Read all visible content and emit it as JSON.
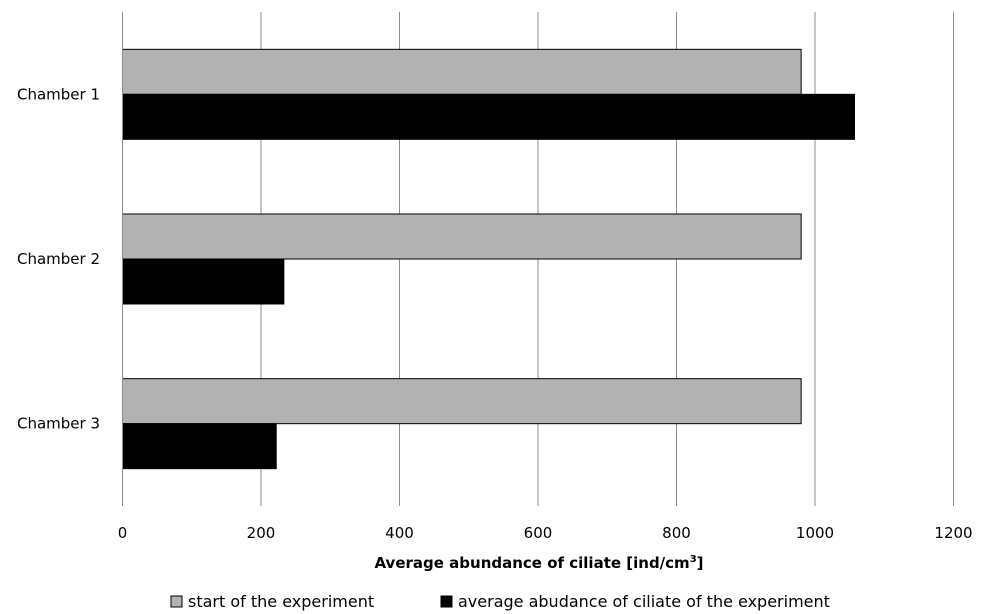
{
  "chart_data": {
    "type": "bar",
    "orientation": "horizontal",
    "categories": [
      "Chamber 1",
      "Chamber 2",
      "Chamber 3"
    ],
    "series": [
      {
        "name": "start of the experiment",
        "color": "#b2b2b2",
        "values": [
          980,
          980,
          980
        ]
      },
      {
        "name": "average abudance of ciliate of the experiment",
        "color": "#000000",
        "values": [
          1057,
          233,
          222
        ]
      }
    ],
    "xlabel_main": "Average abundance of ciliate [ind/cm",
    "xlabel_sup": "3",
    "xlabel_end": "]",
    "ylabel": "",
    "xlim": [
      0,
      1200
    ],
    "x_ticks": [
      "0",
      "200",
      "400",
      "600",
      "800",
      "1000",
      "1200"
    ],
    "grid": "vertical",
    "legend_position": "bottom"
  }
}
